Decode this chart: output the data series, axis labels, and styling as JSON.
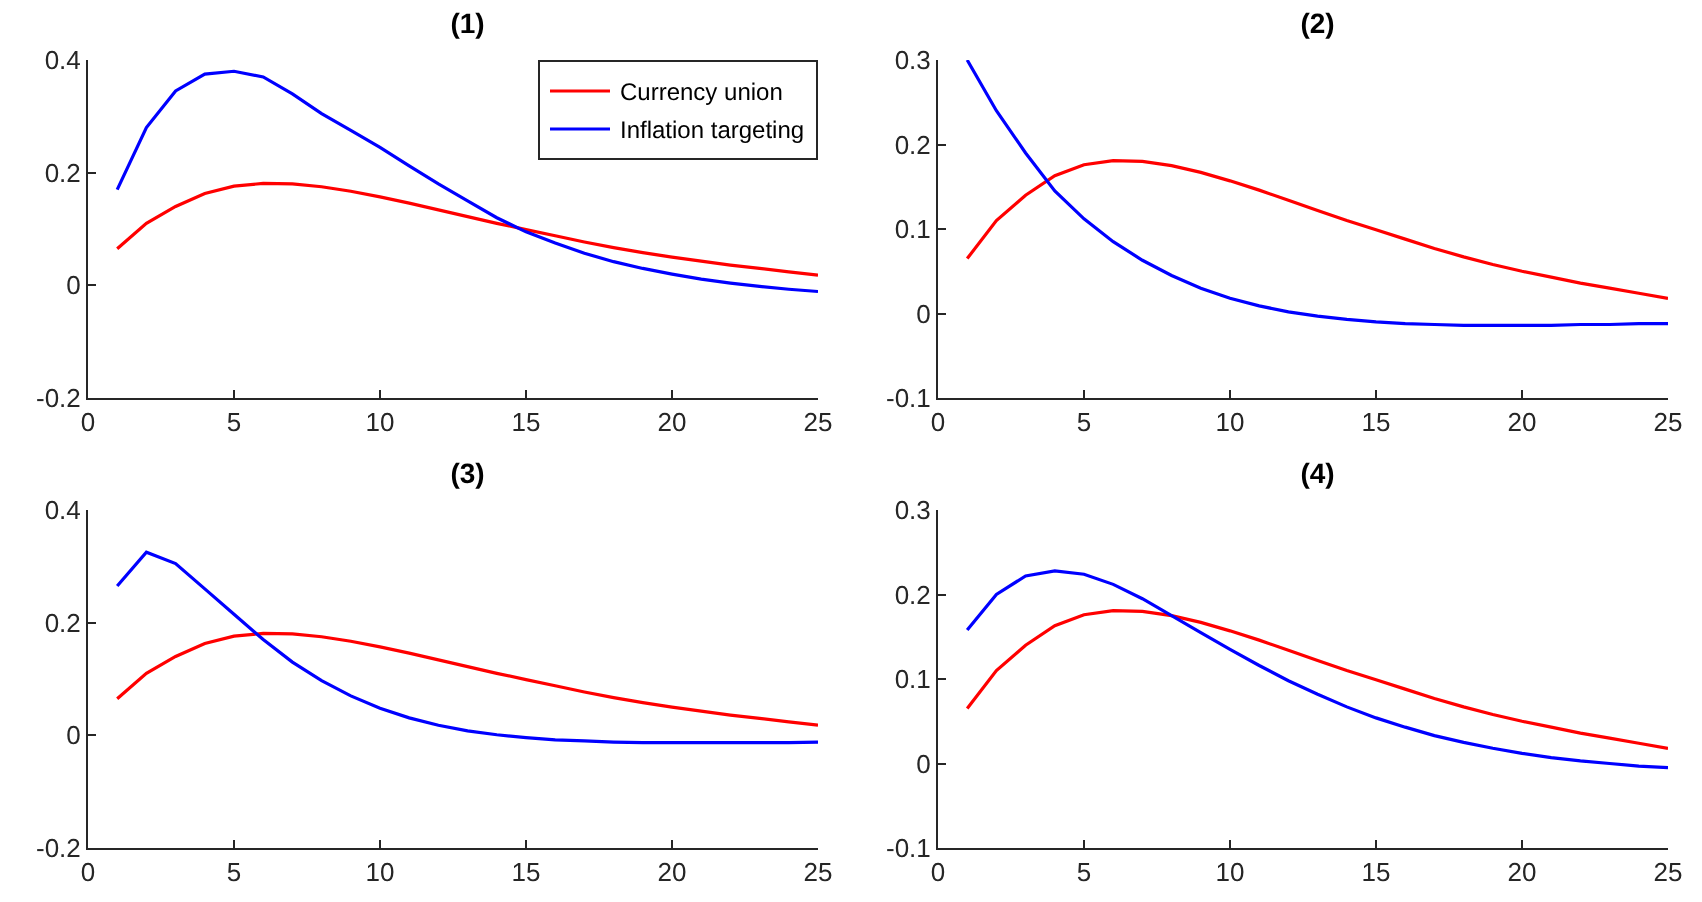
{
  "chart_data": [
    {
      "type": "line",
      "title": "(1)",
      "x": [
        1,
        2,
        3,
        4,
        5,
        6,
        7,
        8,
        9,
        10,
        11,
        12,
        13,
        14,
        15,
        16,
        17,
        18,
        19,
        20,
        21,
        22,
        23,
        24,
        25
      ],
      "xlim": [
        0,
        25
      ],
      "xticks": [
        0,
        5,
        10,
        15,
        20,
        25
      ],
      "ylim": [
        -0.2,
        0.4
      ],
      "yticks": [
        -0.2,
        0,
        0.2,
        0.4
      ],
      "grid": false,
      "legend": "top right",
      "marker": "none",
      "line_style": "solid",
      "series": [
        {
          "name": "Currency union",
          "color": "#ff0000",
          "values": [
            0.065,
            0.11,
            0.14,
            0.163,
            0.176,
            0.181,
            0.18,
            0.175,
            0.167,
            0.157,
            0.146,
            0.134,
            0.122,
            0.11,
            0.099,
            0.088,
            0.077,
            0.067,
            0.058,
            0.05,
            0.043,
            0.036,
            0.03,
            0.024,
            0.018
          ]
        },
        {
          "name": "Inflation targeting",
          "color": "#0000ff",
          "values": [
            0.17,
            0.28,
            0.345,
            0.375,
            0.38,
            0.37,
            0.34,
            0.305,
            0.275,
            0.245,
            0.212,
            0.18,
            0.15,
            0.12,
            0.095,
            0.075,
            0.057,
            0.042,
            0.03,
            0.02,
            0.011,
            0.004,
            -0.002,
            -0.007,
            -0.011
          ]
        }
      ]
    },
    {
      "type": "line",
      "title": "(2)",
      "x": [
        1,
        2,
        3,
        4,
        5,
        6,
        7,
        8,
        9,
        10,
        11,
        12,
        13,
        14,
        15,
        16,
        17,
        18,
        19,
        20,
        21,
        22,
        23,
        24,
        25
      ],
      "xlim": [
        0,
        25
      ],
      "xticks": [
        0,
        5,
        10,
        15,
        20,
        25
      ],
      "ylim": [
        -0.1,
        0.3
      ],
      "yticks": [
        -0.1,
        0,
        0.1,
        0.2,
        0.3
      ],
      "grid": false,
      "marker": "none",
      "line_style": "solid",
      "series": [
        {
          "color": "#ff0000",
          "values": [
            0.065,
            0.11,
            0.14,
            0.163,
            0.176,
            0.181,
            0.18,
            0.175,
            0.167,
            0.157,
            0.146,
            0.134,
            0.122,
            0.11,
            0.099,
            0.088,
            0.077,
            0.067,
            0.058,
            0.05,
            0.043,
            0.036,
            0.03,
            0.024,
            0.018
          ]
        },
        {
          "color": "#0000ff",
          "values": [
            0.3,
            0.24,
            0.19,
            0.145,
            0.112,
            0.085,
            0.063,
            0.045,
            0.03,
            0.018,
            0.009,
            0.002,
            -0.003,
            -0.007,
            -0.01,
            -0.012,
            -0.013,
            -0.014,
            -0.014,
            -0.014,
            -0.014,
            -0.013,
            -0.013,
            -0.012,
            -0.012
          ]
        }
      ]
    },
    {
      "type": "line",
      "title": "(3)",
      "x": [
        1,
        2,
        3,
        4,
        5,
        6,
        7,
        8,
        9,
        10,
        11,
        12,
        13,
        14,
        15,
        16,
        17,
        18,
        19,
        20,
        21,
        22,
        23,
        24,
        25
      ],
      "xlim": [
        0,
        25
      ],
      "xticks": [
        0,
        5,
        10,
        15,
        20,
        25
      ],
      "ylim": [
        -0.2,
        0.4
      ],
      "yticks": [
        -0.2,
        0,
        0.2,
        0.4
      ],
      "grid": false,
      "marker": "none",
      "line_style": "solid",
      "series": [
        {
          "color": "#ff0000",
          "values": [
            0.065,
            0.11,
            0.14,
            0.163,
            0.176,
            0.181,
            0.18,
            0.175,
            0.167,
            0.157,
            0.146,
            0.134,
            0.122,
            0.11,
            0.099,
            0.088,
            0.077,
            0.067,
            0.058,
            0.05,
            0.043,
            0.036,
            0.03,
            0.024,
            0.018
          ]
        },
        {
          "color": "#0000ff",
          "values": [
            0.265,
            0.325,
            0.305,
            0.26,
            0.215,
            0.17,
            0.13,
            0.097,
            0.07,
            0.048,
            0.031,
            0.018,
            0.008,
            0.001,
            -0.004,
            -0.008,
            -0.01,
            -0.012,
            -0.013,
            -0.013,
            -0.013,
            -0.013,
            -0.013,
            -0.013,
            -0.012
          ]
        }
      ]
    },
    {
      "type": "line",
      "title": "(4)",
      "x": [
        1,
        2,
        3,
        4,
        5,
        6,
        7,
        8,
        9,
        10,
        11,
        12,
        13,
        14,
        15,
        16,
        17,
        18,
        19,
        20,
        21,
        22,
        23,
        24,
        25
      ],
      "xlim": [
        0,
        25
      ],
      "xticks": [
        0,
        5,
        10,
        15,
        20,
        25
      ],
      "ylim": [
        -0.1,
        0.3
      ],
      "yticks": [
        -0.1,
        0,
        0.1,
        0.2,
        0.3
      ],
      "grid": false,
      "marker": "none",
      "line_style": "solid",
      "series": [
        {
          "color": "#ff0000",
          "values": [
            0.065,
            0.11,
            0.14,
            0.163,
            0.176,
            0.181,
            0.18,
            0.175,
            0.167,
            0.157,
            0.146,
            0.134,
            0.122,
            0.11,
            0.099,
            0.088,
            0.077,
            0.067,
            0.058,
            0.05,
            0.043,
            0.036,
            0.03,
            0.024,
            0.018
          ]
        },
        {
          "color": "#0000ff",
          "values": [
            0.158,
            0.2,
            0.222,
            0.228,
            0.224,
            0.212,
            0.195,
            0.175,
            0.155,
            0.135,
            0.116,
            0.098,
            0.082,
            0.067,
            0.054,
            0.043,
            0.033,
            0.025,
            0.018,
            0.012,
            0.007,
            0.003,
            0,
            -0.003,
            -0.005
          ]
        }
      ]
    }
  ]
}
